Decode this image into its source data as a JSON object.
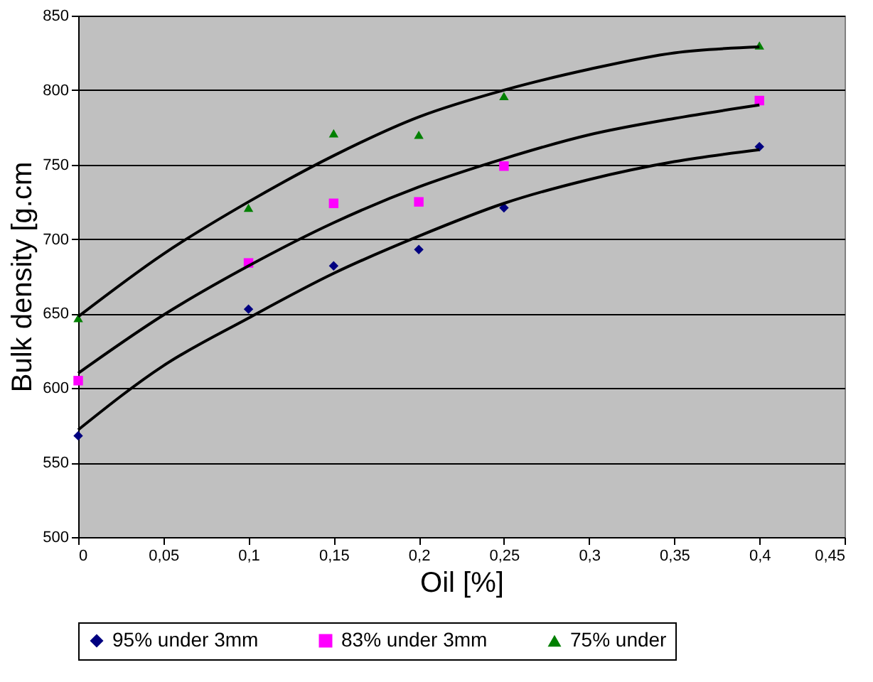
{
  "chart_data": {
    "type": "scatter",
    "xlabel": "Oil [%]",
    "ylabel": "Bulk density [g.cm",
    "x": [
      0,
      0.1,
      0.15,
      0.2,
      0.25,
      0.4
    ],
    "xlim": [
      0,
      0.45
    ],
    "xticks": [
      {
        "value": 0,
        "label": "0"
      },
      {
        "value": 0.05,
        "label": "0,05"
      },
      {
        "value": 0.1,
        "label": "0,1"
      },
      {
        "value": 0.15,
        "label": "0,15"
      },
      {
        "value": 0.2,
        "label": "0,2"
      },
      {
        "value": 0.25,
        "label": "0,25"
      },
      {
        "value": 0.3,
        "label": "0,3"
      },
      {
        "value": 0.35,
        "label": "0,35"
      },
      {
        "value": 0.4,
        "label": "0,4"
      },
      {
        "value": 0.45,
        "label": "0,45"
      }
    ],
    "ylim": [
      500,
      850
    ],
    "yticks": [
      500,
      550,
      600,
      650,
      700,
      750,
      800,
      850
    ],
    "grid": "y",
    "legend": "bottom",
    "series": [
      {
        "name": "95% under 3mm",
        "color": "#000080",
        "marker": "diamond",
        "values": [
          568,
          653,
          682,
          693,
          721,
          762
        ]
      },
      {
        "name": "83% under 3mm",
        "color": "#ff00ff",
        "marker": "square",
        "values": [
          605,
          684,
          724,
          725,
          749,
          793
        ]
      },
      {
        "name": "75% under",
        "color": "#008000",
        "marker": "triangle",
        "values": [
          647,
          721,
          771,
          770,
          796,
          830
        ]
      },
      {
        "type": "line",
        "color": "#000000",
        "line_style": "solid",
        "x": [
          0,
          0.05,
          0.1,
          0.15,
          0.2,
          0.25,
          0.3,
          0.35,
          0.4
        ],
        "values": [
          572,
          615,
          647,
          677,
          702,
          724,
          740,
          752,
          760
        ]
      },
      {
        "type": "line",
        "color": "#000000",
        "line_style": "solid",
        "x": [
          0,
          0.05,
          0.1,
          0.15,
          0.2,
          0.25,
          0.3,
          0.35,
          0.4
        ],
        "values": [
          610,
          649,
          682,
          711,
          735,
          754,
          770,
          781,
          790
        ]
      },
      {
        "type": "line",
        "color": "#000000",
        "line_style": "solid",
        "x": [
          0,
          0.05,
          0.1,
          0.15,
          0.2,
          0.25,
          0.3,
          0.35,
          0.4
        ],
        "values": [
          648,
          690,
          725,
          756,
          782,
          800,
          814,
          825,
          829
        ]
      }
    ]
  }
}
